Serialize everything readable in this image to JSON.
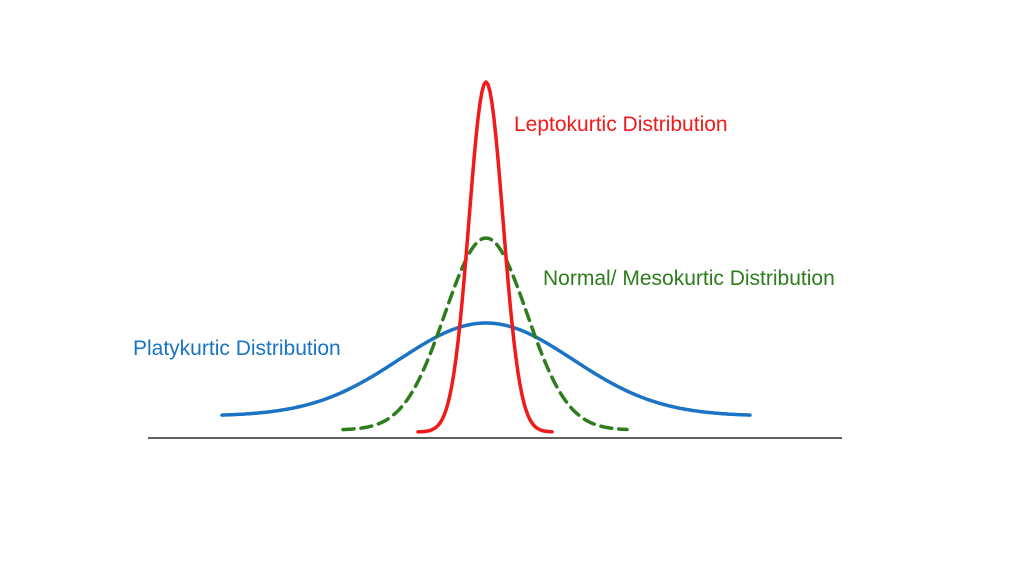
{
  "curves": [
    {
      "key": "lepto",
      "label": "Leptokurtic Distribution",
      "color": "#f01a1a",
      "line_style": "solid"
    },
    {
      "key": "normal",
      "label": "Normal/ Mesokurtic Distribution",
      "color": "#2d7d1c",
      "line_style": "dashed"
    },
    {
      "key": "platy",
      "label": "Platykurtic Distribution",
      "color": "#1a73c4",
      "line_style": "solid"
    }
  ],
  "baseline_color": "#000000"
}
